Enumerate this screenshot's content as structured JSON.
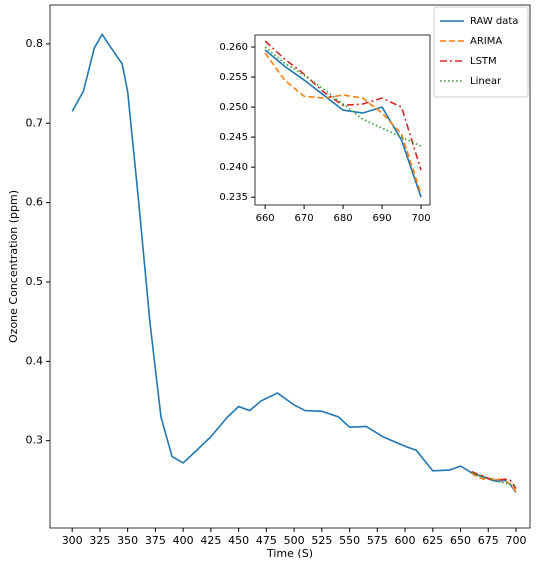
{
  "chart_data": [
    {
      "type": "line",
      "xlabel": "Time (S)",
      "ylabel": "Ozone Concentration (ppm)",
      "x": [
        300,
        310,
        320,
        327,
        335,
        345,
        350,
        360,
        370,
        380,
        390,
        400,
        410,
        425,
        440,
        450,
        460,
        470,
        485,
        500,
        510,
        525,
        540,
        550,
        565,
        580,
        600,
        610,
        625,
        640,
        650,
        660,
        665,
        670,
        675,
        680,
        685,
        690,
        695,
        700
      ],
      "series": [
        {
          "name": "RAW data",
          "color": "#1f77b4",
          "dash": "solid",
          "values": [
            0.715,
            0.74,
            0.795,
            0.812,
            0.795,
            0.775,
            0.74,
            0.6,
            0.45,
            0.33,
            0.28,
            0.272,
            0.285,
            0.305,
            0.33,
            0.343,
            0.338,
            0.35,
            0.36,
            0.345,
            0.338,
            0.337,
            0.33,
            0.317,
            0.318,
            0.305,
            0.293,
            0.288,
            0.262,
            0.263,
            0.268,
            0.2595,
            0.2568,
            0.2545,
            0.252,
            0.2495,
            0.249,
            0.25,
            0.2445,
            0.235
          ]
        },
        {
          "name": "ARIMA",
          "color": "#ff7f0e",
          "dash": "dashed",
          "values": [
            null,
            null,
            null,
            null,
            null,
            null,
            null,
            null,
            null,
            null,
            null,
            null,
            null,
            null,
            null,
            null,
            null,
            null,
            null,
            null,
            null,
            null,
            null,
            null,
            null,
            null,
            null,
            null,
            null,
            null,
            null,
            0.259,
            0.2545,
            0.2518,
            0.2515,
            0.252,
            0.2515,
            0.249,
            0.2455,
            0.2355
          ]
        },
        {
          "name": "LSTM",
          "color": "#d62728",
          "dash": "dashdot",
          "values": [
            null,
            null,
            null,
            null,
            null,
            null,
            null,
            null,
            null,
            null,
            null,
            null,
            null,
            null,
            null,
            null,
            null,
            null,
            null,
            null,
            null,
            null,
            null,
            null,
            null,
            null,
            null,
            null,
            null,
            null,
            null,
            0.261,
            0.258,
            0.2555,
            0.2525,
            0.2503,
            0.2505,
            0.2515,
            0.25,
            0.2395
          ]
        },
        {
          "name": "Linear",
          "color": "#2ca02c",
          "dash": "dotted",
          "values": [
            null,
            null,
            null,
            null,
            null,
            null,
            null,
            null,
            null,
            null,
            null,
            null,
            null,
            null,
            null,
            null,
            null,
            null,
            null,
            null,
            null,
            null,
            null,
            null,
            null,
            null,
            null,
            null,
            null,
            null,
            null,
            0.26,
            0.2573,
            0.2553,
            0.253,
            0.2505,
            0.248,
            0.2465,
            0.245,
            0.2435
          ]
        }
      ],
      "xlim": [
        280,
        712.6
      ],
      "xticks": [
        300,
        325,
        350,
        375,
        400,
        425,
        450,
        475,
        500,
        525,
        550,
        575,
        600,
        625,
        650,
        675,
        700
      ],
      "ylim": [
        0.19,
        0.849
      ],
      "yticks": [
        0.3,
        0.4,
        0.5,
        0.6,
        0.7,
        0.8
      ],
      "legend": "upper right"
    },
    {
      "type": "line",
      "x": [
        660,
        665,
        670,
        675,
        680,
        685,
        690,
        695,
        700
      ],
      "series": [
        {
          "color": "#1f77b4",
          "dash": "solid",
          "values": [
            0.2595,
            0.2568,
            0.2545,
            0.252,
            0.2495,
            0.249,
            0.25,
            0.2445,
            0.235
          ]
        },
        {
          "color": "#ff7f0e",
          "dash": "dashed",
          "values": [
            0.259,
            0.2545,
            0.2518,
            0.2515,
            0.252,
            0.2515,
            0.249,
            0.2455,
            0.2355
          ]
        },
        {
          "color": "#d62728",
          "dash": "dashdot",
          "values": [
            0.261,
            0.258,
            0.2555,
            0.2525,
            0.2503,
            0.2505,
            0.2515,
            0.25,
            0.2395
          ]
        },
        {
          "color": "#2ca02c",
          "dash": "dotted",
          "values": [
            0.26,
            0.2573,
            0.2553,
            0.253,
            0.2505,
            0.248,
            0.2465,
            0.245,
            0.2435
          ]
        }
      ],
      "xlim": [
        657.4,
        702.3
      ],
      "xticks": [
        660,
        670,
        680,
        690,
        700
      ],
      "ylim": [
        0.2337,
        0.262
      ],
      "yticks": [
        0.235,
        {
          "value": 0.24,
          "label": "0.240"
        },
        0.245,
        {
          "value": 0.25,
          "label": "0.250"
        },
        0.255,
        {
          "value": 0.26,
          "label": "0.260"
        }
      ]
    }
  ]
}
